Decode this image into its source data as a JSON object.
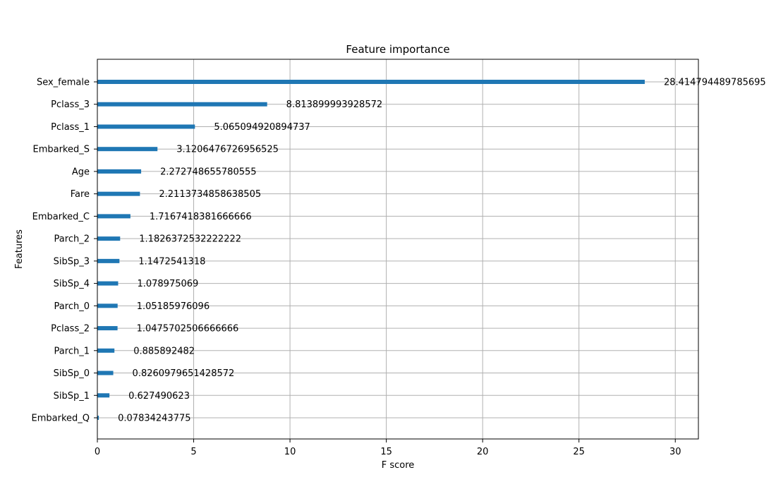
{
  "chart_data": {
    "type": "bar",
    "orientation": "horizontal",
    "title": "Feature importance",
    "xlabel": "F score",
    "ylabel": "Features",
    "xlim": [
      0,
      31.2
    ],
    "xticks": [
      0,
      5,
      10,
      15,
      20,
      25,
      30
    ],
    "grid": true,
    "bar_color": "#1f77b4",
    "categories": [
      "Sex_female",
      "Pclass_3",
      "Pclass_1",
      "Embarked_S",
      "Age",
      "Fare",
      "Embarked_C",
      "Parch_2",
      "SibSp_3",
      "SibSp_4",
      "Parch_0",
      "Pclass_2",
      "Parch_1",
      "SibSp_0",
      "SibSp_1",
      "Embarked_Q"
    ],
    "values": [
      28.414794489785695,
      8.813899993928572,
      5.065094920894737,
      3.1206476726956525,
      2.272748655780555,
      2.2113734858638505,
      1.7167418381666666,
      1.1826372532222222,
      1.1472541318,
      1.078975069,
      1.05185976096,
      1.0475702506666666,
      0.885892482,
      0.8260979651428572,
      0.627490623,
      0.07834243775
    ],
    "value_labels": [
      "28.414794489785695",
      "8.813899993928572",
      "5.065094920894737",
      "3.1206476726956525",
      "2.272748655780555",
      "2.2113734858638505",
      "1.7167418381666666",
      "1.1826372532222222",
      "1.1472541318",
      "1.078975069",
      "1.05185976096",
      "1.0475702506666666",
      "0.885892482",
      "0.8260979651428572",
      "0.627490623",
      "0.07834243775"
    ]
  }
}
